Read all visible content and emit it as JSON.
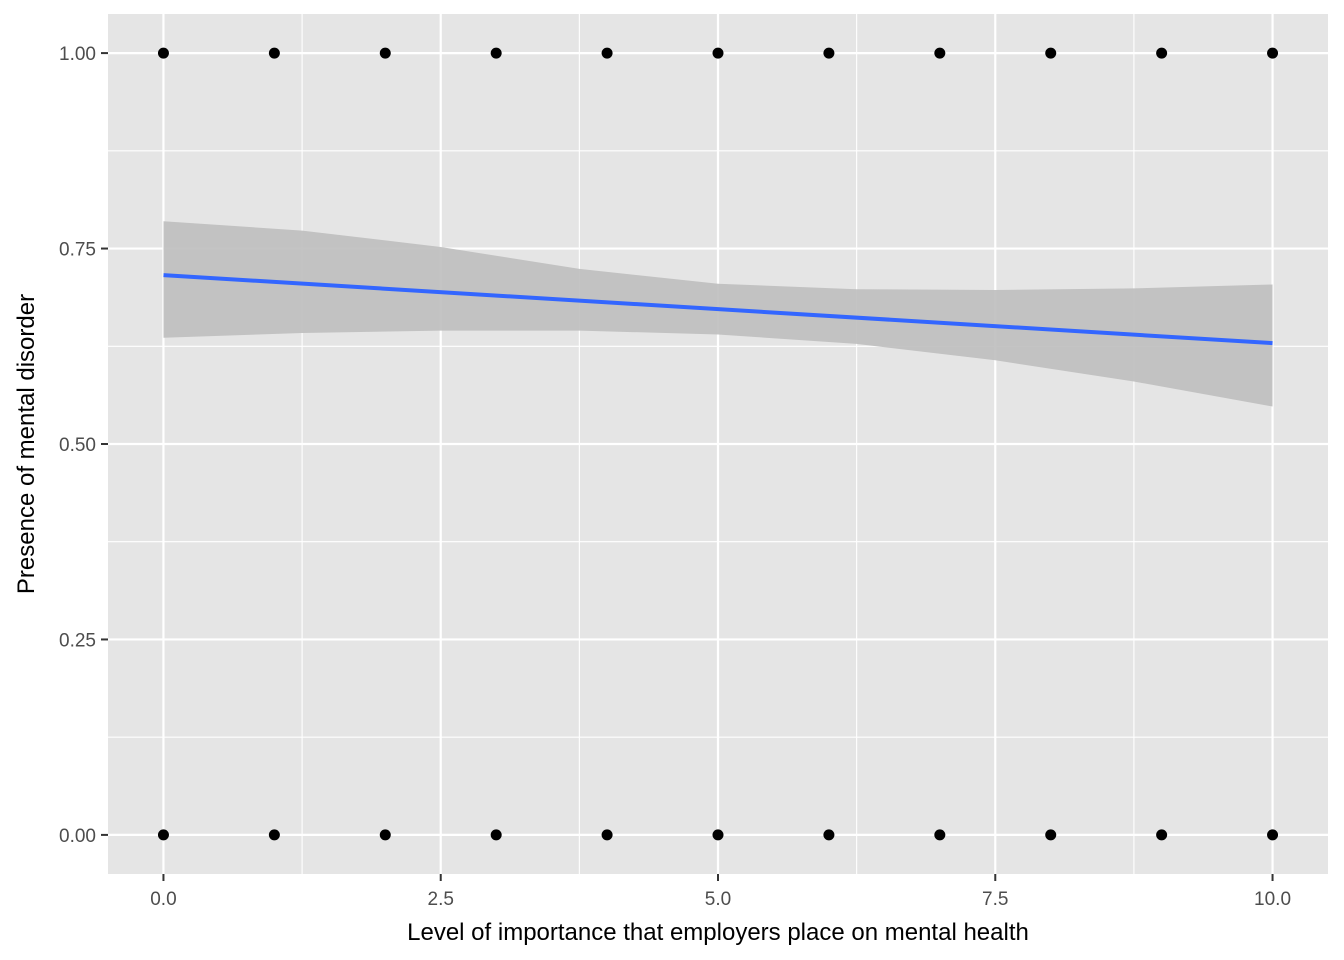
{
  "chart_data": {
    "type": "scatter",
    "xlabel": "Level of importance that employers place on mental health",
    "ylabel": "Presence of mental disorder",
    "xlim": [
      -0.5,
      10.5
    ],
    "ylim": [
      -0.05,
      1.05
    ],
    "x_ticks": [
      0.0,
      2.5,
      5.0,
      7.5,
      10.0
    ],
    "x_tick_labels": [
      "0.0",
      "2.5",
      "5.0",
      "7.5",
      "10.0"
    ],
    "y_ticks": [
      0.0,
      0.25,
      0.5,
      0.75,
      1.0
    ],
    "y_tick_labels": [
      "0.00",
      "0.25",
      "0.50",
      "0.75",
      "1.00"
    ],
    "grid": true,
    "points": {
      "x": [
        0,
        1,
        2,
        3,
        4,
        5,
        6,
        7,
        8,
        9,
        10,
        0,
        1,
        2,
        3,
        4,
        5,
        6,
        7,
        8,
        9,
        10
      ],
      "y": [
        1,
        1,
        1,
        1,
        1,
        1,
        1,
        1,
        1,
        1,
        1,
        0,
        0,
        0,
        0,
        0,
        0,
        0,
        0,
        0,
        0,
        0
      ]
    },
    "fit_line": {
      "method": "linear",
      "x": [
        0,
        10
      ],
      "y": [
        0.716,
        0.629
      ]
    },
    "confidence_band": {
      "x": [
        0,
        1.25,
        2.5,
        3.75,
        5,
        6.25,
        7.5,
        8.75,
        10
      ],
      "lower": [
        0.636,
        0.642,
        0.645,
        0.645,
        0.64,
        0.628,
        0.607,
        0.58,
        0.548
      ],
      "upper": [
        0.785,
        0.773,
        0.752,
        0.724,
        0.705,
        0.698,
        0.697,
        0.699,
        0.704
      ]
    },
    "colors": {
      "panel": "#e5e5e5",
      "grid": "#ffffff",
      "points": "#000000",
      "line": "#3366ff",
      "band": "#bebebe"
    }
  }
}
